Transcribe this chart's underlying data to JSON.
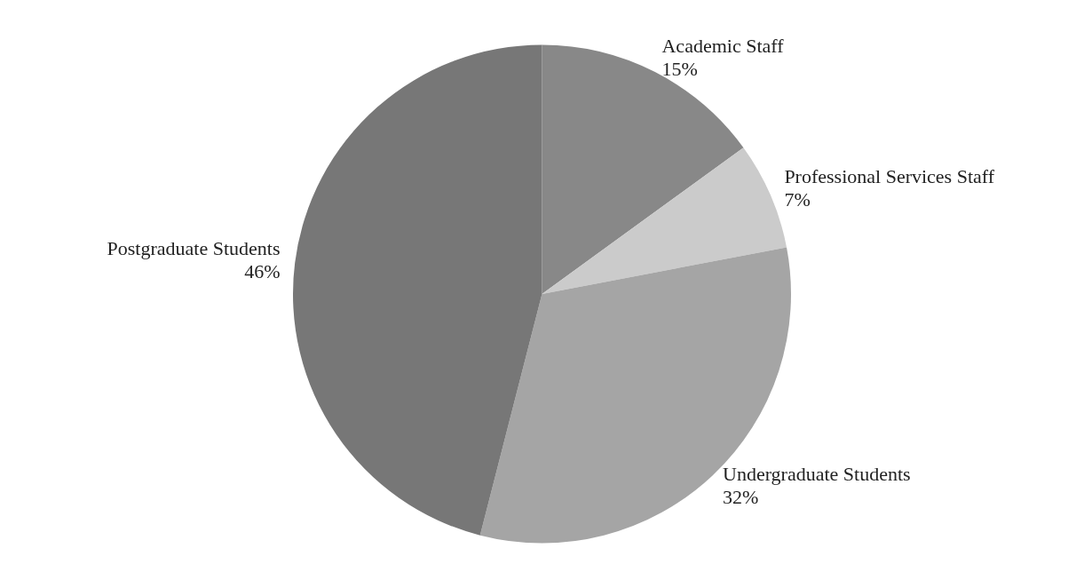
{
  "chart_data": {
    "type": "pie",
    "categories": [
      "Academic Staff",
      "Professional Services Staff",
      "Undergraduate Students",
      "Postgraduate Students"
    ],
    "values": [
      15,
      7,
      32,
      46
    ],
    "colors": [
      "#888888",
      "#cbcbcb",
      "#a5a5a5",
      "#777777"
    ],
    "value_labels": [
      "15%",
      "7%",
      "32%",
      "46%"
    ],
    "legend": false
  }
}
